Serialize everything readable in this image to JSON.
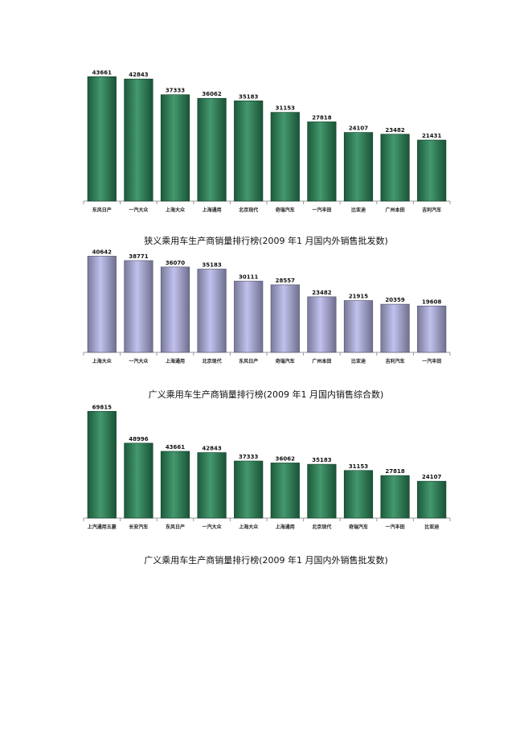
{
  "chart_data": [
    {
      "type": "bar",
      "title": "",
      "caption": "狭义乘用车生产商销量排行榜(2009  年1  月国内外销售批发数)",
      "categories": [
        "东风日产",
        "一汽大众",
        "上海大众",
        "上海通用",
        "北京现代",
        "奇瑞汽车",
        "一汽丰田",
        "比亚迪",
        "广州本田",
        "吉利汽车"
      ],
      "values": [
        43661,
        42843,
        37333,
        36062,
        35183,
        31153,
        27818,
        24107,
        23482,
        21431
      ],
      "bar_color": "#2a8a5a",
      "ylim": [
        0,
        46000
      ]
    },
    {
      "type": "bar",
      "title": "",
      "caption": "广义乘用车生产商销量排行榜(2009  年1  月国内销售综合数)",
      "categories": [
        "上海大众",
        "一汽大众",
        "上海通用",
        "北京现代",
        "东风日产",
        "奇瑞汽车",
        "广州本田",
        "比亚迪",
        "吉利汽车",
        "一汽丰田"
      ],
      "values": [
        40642,
        38771,
        36070,
        35183,
        30111,
        28557,
        23482,
        21915,
        20359,
        19608
      ],
      "bar_color": "#b9b9ec",
      "ylim": [
        0,
        41800
      ]
    },
    {
      "type": "bar",
      "title": "",
      "caption": "广义乘用车生产商销量排行榜(2009  年1  月国内外销售批发数)",
      "categories": [
        "上汽通用五菱",
        "长安汽车",
        "东风日产",
        "一汽大众",
        "上海大众",
        "上海通用",
        "北京现代",
        "奇瑞汽车",
        "一汽丰田",
        "比亚迪"
      ],
      "values": [
        69815,
        48996,
        43661,
        42843,
        37333,
        36062,
        35183,
        31153,
        27818,
        24107
      ],
      "bar_color": "#2a8a5a",
      "ylim": [
        0,
        71000
      ]
    }
  ]
}
